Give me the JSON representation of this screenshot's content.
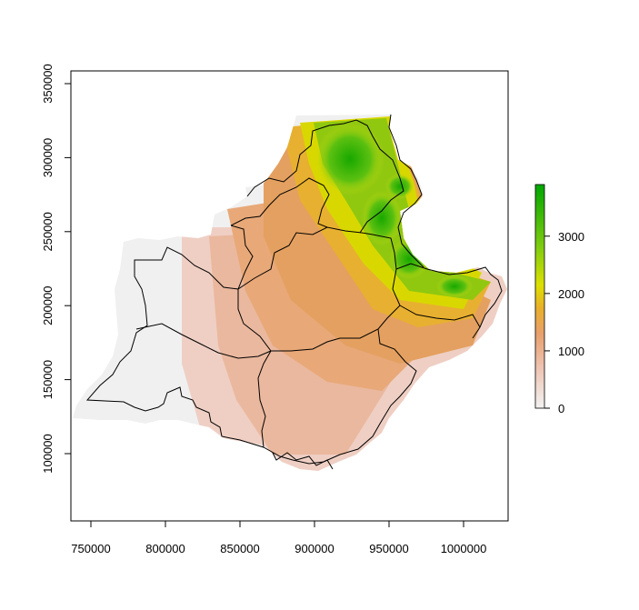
{
  "chart_data": {
    "type": "heatmap",
    "title": "",
    "xlabel": "",
    "ylabel": "",
    "xlim": [
      735000,
      1030000
    ],
    "ylim": [
      50000,
      360000
    ],
    "x_ticks": [
      "750000",
      "800000",
      "850000",
      "900000",
      "950000",
      "1000000"
    ],
    "x_tick_values": [
      750000,
      800000,
      850000,
      900000,
      950000,
      1000000
    ],
    "y_ticks": [
      "100000",
      "150000",
      "200000",
      "250000",
      "300000",
      "350000"
    ],
    "y_tick_values": [
      100000,
      150000,
      200000,
      250000,
      300000,
      350000
    ],
    "legend": {
      "placement": "right",
      "range": [
        0,
        3900
      ],
      "ticks": [
        "0",
        "1000",
        "2000",
        "3000"
      ],
      "tick_values": [
        0,
        1000,
        2000,
        3000
      ],
      "colors": [
        "#f2f2f2",
        "#eec4b2",
        "#e8a06e",
        "#e8b02a",
        "#dde000",
        "#7fcc10",
        "#00a600"
      ]
    },
    "description_values": {
      "min_elevation": 0,
      "max_elevation": 3900
    }
  }
}
